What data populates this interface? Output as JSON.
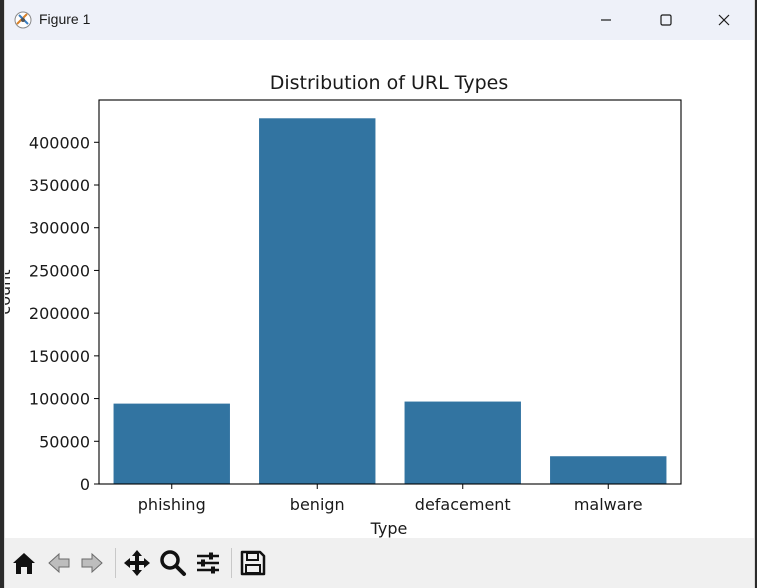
{
  "window": {
    "title": "Figure 1"
  },
  "titlebar_icons": {
    "app": "matplotlib-figure-icon",
    "minimize": "minimize-icon",
    "maximize": "maximize-icon",
    "close": "close-icon"
  },
  "toolbar": {
    "items": [
      "home-icon",
      "back-arrow-icon",
      "forward-arrow-icon",
      "pan-move-icon",
      "zoom-magnifier-icon",
      "configure-subplots-icon",
      "save-floppy-icon"
    ]
  },
  "colors": {
    "bar": "#3274a1",
    "toolbar_bg": "#f0f0f0",
    "titlebar_bg": "#eef1f9"
  },
  "chart_data": {
    "type": "bar",
    "title": "Distribution of URL Types",
    "xlabel": "Type",
    "ylabel": "count",
    "categories": [
      "phishing",
      "benign",
      "defacement",
      "malware"
    ],
    "values": [
      94100,
      428100,
      96500,
      32500
    ],
    "yticks": [
      0,
      50000,
      100000,
      150000,
      200000,
      250000,
      300000,
      350000,
      400000
    ],
    "ytick_labels": [
      "0",
      "50000",
      "100000",
      "150000",
      "200000",
      "250000",
      "300000",
      "350000",
      "400000"
    ],
    "ylim": [
      0,
      449500
    ],
    "grid": false,
    "legend": "none"
  }
}
